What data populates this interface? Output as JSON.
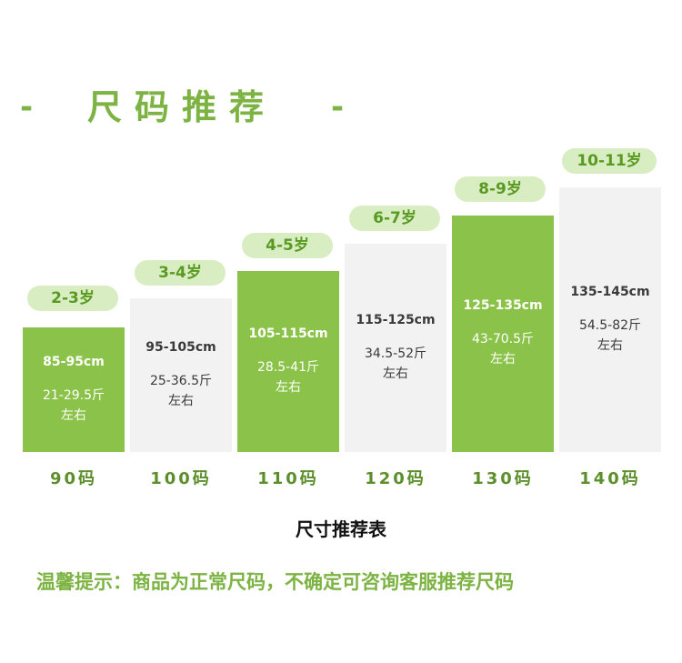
{
  "header": {
    "dash_left": "-",
    "title": "尺码推荐",
    "dash_right": "-"
  },
  "cards": [
    {
      "age": "2-3岁",
      "height": "85-95cm",
      "weight_range": "21-29.5斤",
      "weight_suffix": "左右",
      "size": "90码",
      "style": "green"
    },
    {
      "age": "3-4岁",
      "height": "95-105cm",
      "weight_range": "25-36.5斤",
      "weight_suffix": "左右",
      "size": "100码",
      "style": "gray"
    },
    {
      "age": "4-5岁",
      "height": "105-115cm",
      "weight_range": "28.5-41斤",
      "weight_suffix": "左右",
      "size": "110码",
      "style": "green"
    },
    {
      "age": "6-7岁",
      "height": "115-125cm",
      "weight_range": "34.5-52斤",
      "weight_suffix": "左右",
      "size": "120码",
      "style": "gray"
    },
    {
      "age": "8-9岁",
      "height": "125-135cm",
      "weight_range": "43-70.5斤",
      "weight_suffix": "左右",
      "size": "130码",
      "style": "green"
    },
    {
      "age": "10-11岁",
      "height": "135-145cm",
      "weight_range": "54.5-82斤",
      "weight_suffix": "左右",
      "size": "140码",
      "style": "gray"
    }
  ],
  "caption": "尺寸推荐表",
  "tip": "温馨提示：商品为正常尺码，不确定可咨询客服推荐尺码",
  "colors": {
    "green": "#8bc34a",
    "gray": "#f2f2f2",
    "pill": "#d9edc2",
    "accent": "#7cb342"
  }
}
